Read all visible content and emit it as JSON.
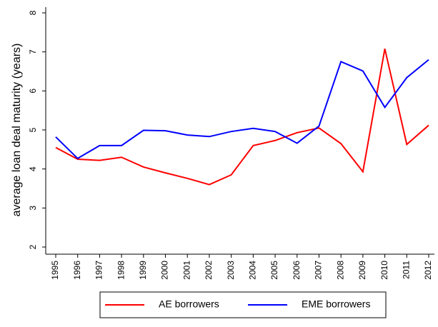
{
  "chart_data": {
    "type": "line",
    "y_label": "average loan deal maturity (years)",
    "categories": [
      "1995",
      "1996",
      "1997",
      "1998",
      "1999",
      "2000",
      "2001",
      "2002",
      "2003",
      "2004",
      "2005",
      "2006",
      "2007",
      "2008",
      "2009",
      "2010",
      "2011",
      "2012"
    ],
    "series": [
      {
        "name": "AE borrowers",
        "color": "#ff0000",
        "values": [
          4.55,
          4.25,
          4.22,
          4.3,
          4.05,
          3.9,
          3.76,
          3.6,
          3.85,
          4.6,
          4.73,
          4.93,
          5.05,
          4.65,
          3.93,
          7.08,
          4.63,
          5.12
        ]
      },
      {
        "name": "EME borrowers",
        "color": "#0000ff",
        "values": [
          4.82,
          4.27,
          4.6,
          4.6,
          4.99,
          4.98,
          4.87,
          4.83,
          4.96,
          5.04,
          4.96,
          4.66,
          5.1,
          6.75,
          6.51,
          5.58,
          6.34,
          6.8
        ]
      }
    ],
    "ylim": [
      2,
      8
    ],
    "yticks": [
      2,
      3,
      4,
      5,
      6,
      7,
      8
    ]
  }
}
